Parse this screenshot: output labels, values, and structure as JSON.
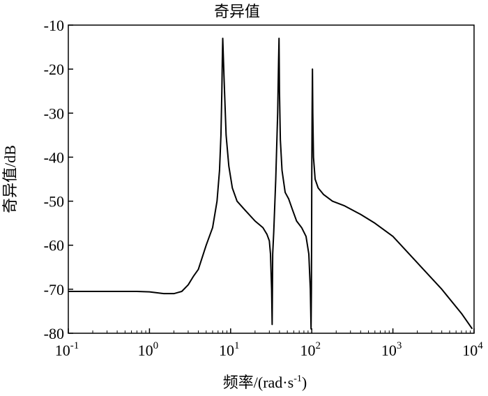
{
  "chart_data": {
    "type": "line",
    "title": "奇异值",
    "xlabel": "频率/(rad·s",
    "xlabel_sup": "-1",
    "xlabel_end": ")",
    "ylabel": "奇异值/dB",
    "xscale": "log",
    "xlim": [
      0.1,
      10000
    ],
    "ylim": [
      -80,
      -10
    ],
    "grid": false,
    "x_ticks": [
      {
        "base": "10",
        "exp": "-1"
      },
      {
        "base": "10",
        "exp": "0"
      },
      {
        "base": "10",
        "exp": "1"
      },
      {
        "base": "10",
        "exp": "2"
      },
      {
        "base": "10",
        "exp": "3"
      },
      {
        "base": "10",
        "exp": "4"
      }
    ],
    "y_ticks": [
      "-10",
      "-20",
      "-30",
      "-40",
      "-50",
      "-60",
      "-70",
      "-80"
    ],
    "series": [
      {
        "color": "#000000",
        "x": [
          0.1,
          0.3,
          0.7,
          1.0,
          1.5,
          2.0,
          2.5,
          3.0,
          3.5,
          4.0,
          5.0,
          6.0,
          6.8,
          7.3,
          7.6,
          7.8,
          7.9,
          8.0,
          8.3,
          8.8,
          9.5,
          10.5,
          12,
          15,
          20,
          25,
          28,
          30,
          31,
          32,
          32.5,
          33,
          34,
          36,
          38,
          39,
          39.5,
          40,
          41,
          43,
          47,
          52,
          58,
          65,
          75,
          85,
          92,
          96,
          98,
          99,
          99.5,
          100,
          101,
          102,
          103,
          105,
          110,
          120,
          140,
          180,
          250,
          400,
          600,
          1000,
          2000,
          4000,
          7000,
          9500
        ],
        "y": [
          -70.5,
          -70.5,
          -70.5,
          -70.6,
          -71.0,
          -71.0,
          -70.5,
          -69.0,
          -67.0,
          -65.5,
          -60.0,
          -56.0,
          -50.0,
          -43.0,
          -35.0,
          -25.0,
          -18.0,
          -13.0,
          -22.0,
          -35.0,
          -42.0,
          -47.0,
          -50.0,
          -52.0,
          -54.5,
          -56.0,
          -57.5,
          -59.0,
          -62.0,
          -70.0,
          -78.0,
          -62.0,
          -57.0,
          -45.0,
          -30.0,
          -18.0,
          -13.0,
          -25.0,
          -36.0,
          -43.0,
          -48.0,
          -49.5,
          -52.0,
          -54.5,
          -56.0,
          -58.0,
          -62.0,
          -70.0,
          -79.0,
          -70.0,
          -60.0,
          -45.0,
          -30.0,
          -20.0,
          -30.0,
          -40.0,
          -45.0,
          -47.0,
          -48.5,
          -50.0,
          -51.0,
          -53.0,
          -55.0,
          -58.0,
          -64.0,
          -70.0,
          -75.5,
          -79.0
        ]
      }
    ]
  }
}
